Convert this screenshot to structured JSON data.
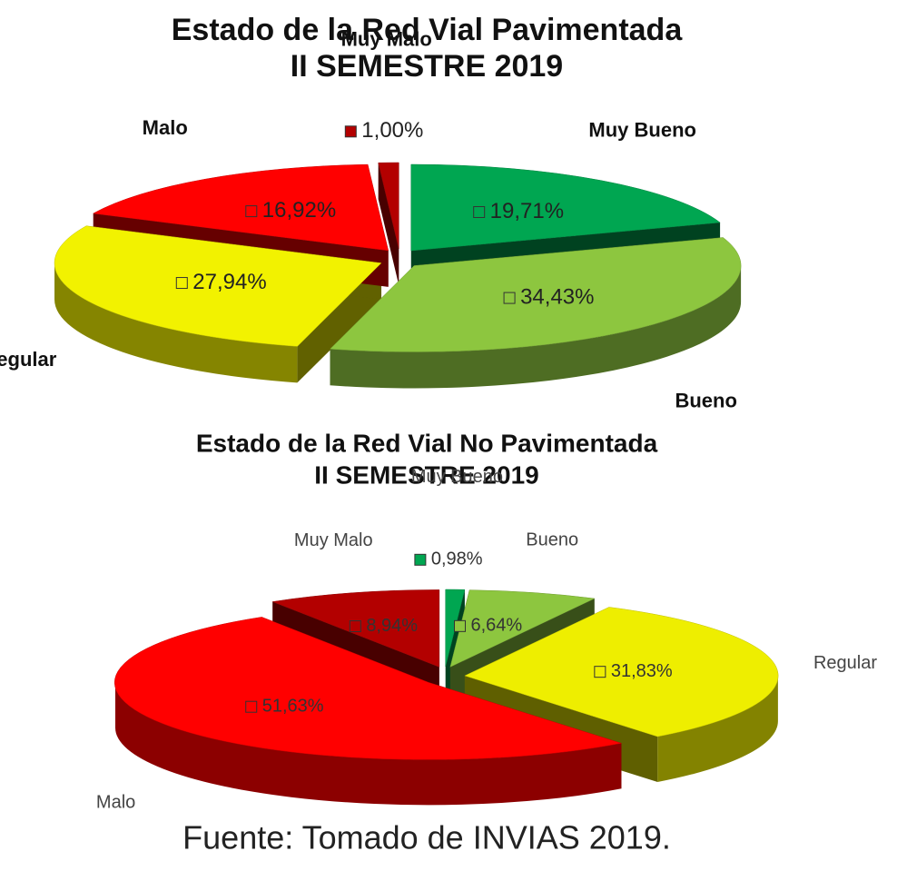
{
  "chart_data": [
    {
      "type": "pie",
      "title": "Estado de la Red Vial Pavimentada",
      "subtitle": "II SEMESTRE 2019",
      "categories": [
        "Muy Bueno",
        "Bueno",
        "Regular",
        "Malo",
        "Muy Malo"
      ],
      "values": [
        19.71,
        34.43,
        27.94,
        16.92,
        1.0
      ],
      "value_labels": [
        "19,71%",
        "34,43%",
        "27,94%",
        "16,92%",
        "1,00%"
      ],
      "colors": [
        "#00a651",
        "#8dc63f",
        "#f2f200",
        "#ff0000",
        "#b30000"
      ]
    },
    {
      "type": "pie",
      "title": "Estado de la Red Vial No Pavimentada",
      "subtitle": "II SEMESTRE 2019",
      "categories": [
        "Muy Bueno",
        "Bueno",
        "Regular",
        "Malo",
        "Muy Malo"
      ],
      "values": [
        0.98,
        6.64,
        31.83,
        51.63,
        8.94
      ],
      "value_labels": [
        "0,98%",
        "6,64%",
        "31,83%",
        "51,63%",
        "8,94%"
      ],
      "colors": [
        "#00a651",
        "#8dc63f",
        "#eeee00",
        "#ff0000",
        "#b30000"
      ]
    }
  ],
  "source": "Fuente: Tomado de INVIAS 2019."
}
